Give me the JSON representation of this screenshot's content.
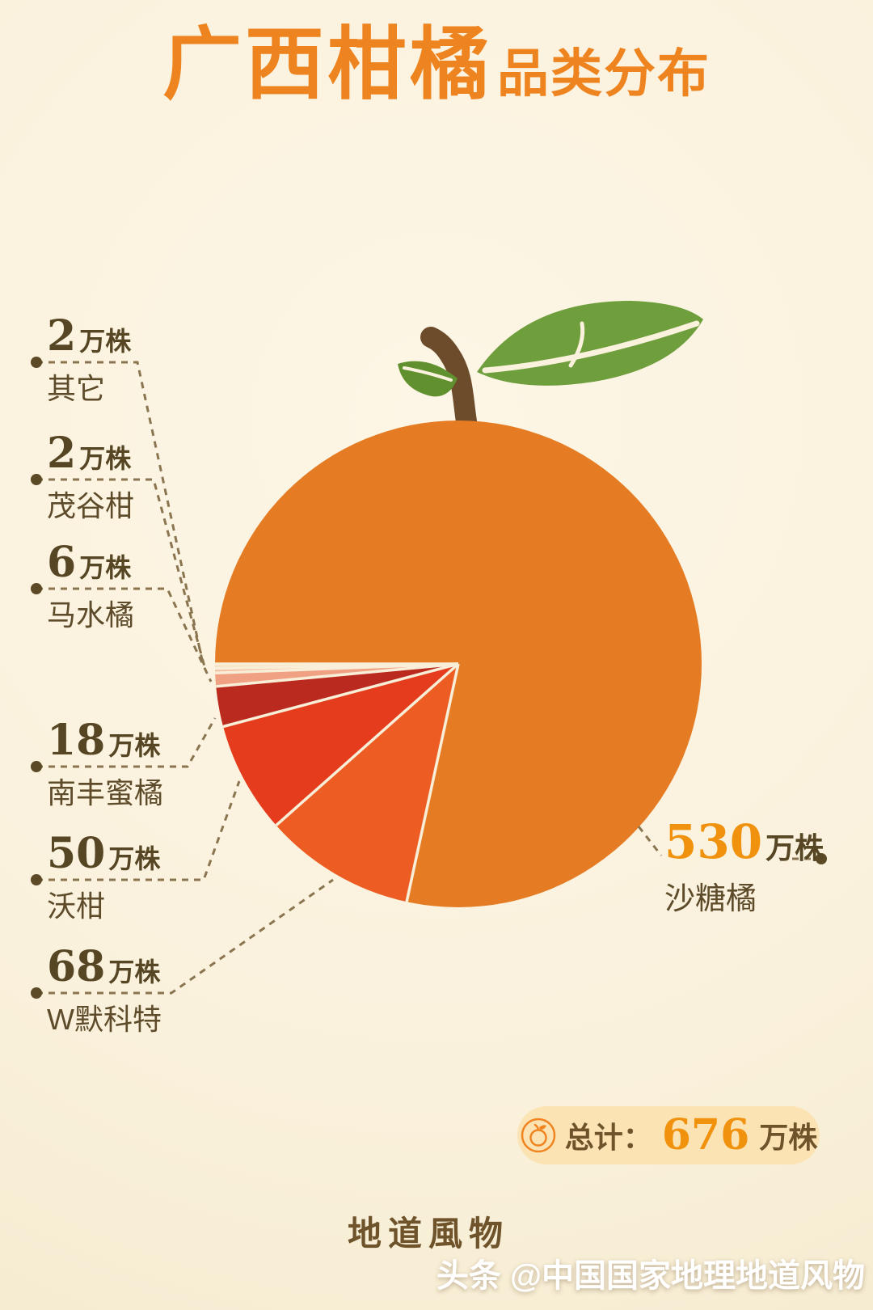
{
  "title": {
    "main": "广西柑橘",
    "sub": "品类分布"
  },
  "chart_data": {
    "type": "pie",
    "title": "广西柑橘品类分布",
    "unit": "万株",
    "total": 676,
    "start": "left-horizontal",
    "direction": "sweep-downward-counterclockwise",
    "slices": [
      {
        "label": "其它",
        "value": 2,
        "color": "#f6e3c4"
      },
      {
        "label": "茂谷柑",
        "value": 2,
        "color": "#f4c0a4"
      },
      {
        "label": "马水橘",
        "value": 6,
        "color": "#f0a183"
      },
      {
        "label": "南丰蜜橘",
        "value": 18,
        "color": "#bb2a1f"
      },
      {
        "label": "沃柑",
        "value": 50,
        "color": "#e63c1e"
      },
      {
        "label": "W默科特",
        "value": 68,
        "color": "#ed5c23"
      },
      {
        "label": "沙糖橘",
        "value": 530,
        "color": "#e57c24"
      }
    ]
  },
  "callouts": {
    "left": [
      {
        "value": "2",
        "unit": "万株",
        "name": "其它"
      },
      {
        "value": "2",
        "unit": "万株",
        "name": "茂谷柑"
      },
      {
        "value": "6",
        "unit": "万株",
        "name": "马水橘"
      },
      {
        "value": "18",
        "unit": "万株",
        "name": "南丰蜜橘"
      },
      {
        "value": "50",
        "unit": "万株",
        "name": "沃柑"
      },
      {
        "value": "68",
        "unit": "万株",
        "name": "W默科特"
      }
    ],
    "right": {
      "value": "530",
      "unit": "万株",
      "name": "沙糖橘"
    }
  },
  "total_badge": {
    "icon": "orange-fruit-icon",
    "prefix": "总计：",
    "value": "676",
    "unit": "万株"
  },
  "footer": {
    "brand": "地道風物",
    "watermark": "头条 @中国国家地理地道风物"
  },
  "colors": {
    "accent_orange": "#ee8420",
    "number_orange": "#f0920e",
    "text_brown": "#564624",
    "leader_line": "#8a7550",
    "leaf_green": "#6f9e3c",
    "stem_brown": "#6d4c2c",
    "badge_bg": "#fce3b4",
    "background": "#faf1dc"
  }
}
